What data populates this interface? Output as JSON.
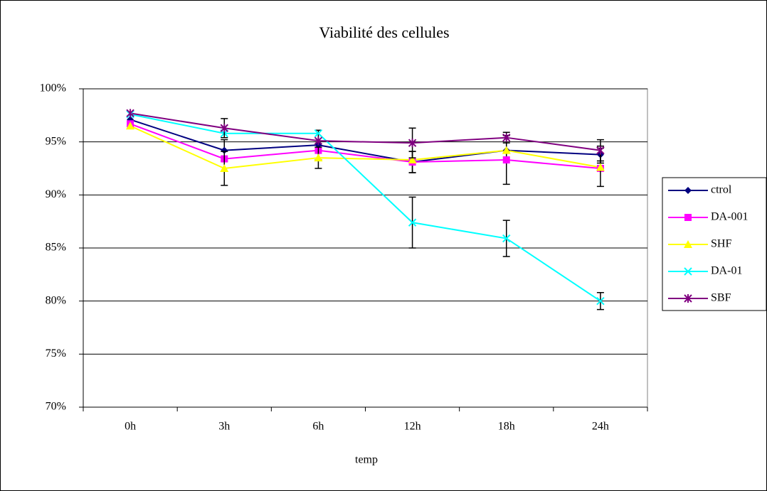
{
  "chart_data": {
    "type": "line",
    "title": "Viabilité des cellules",
    "xlabel": "temp",
    "categories": [
      "0h",
      "3h",
      "6h",
      "12h",
      "18h",
      "24h"
    ],
    "series": [
      {
        "name": "ctrol",
        "color": "#000080",
        "marker": "diamond",
        "values": [
          97.1,
          94.2,
          94.7,
          93.1,
          94.2,
          93.8
        ],
        "errors": [
          null,
          1.0,
          1.4,
          1.0,
          null,
          0.8
        ]
      },
      {
        "name": "DA-001",
        "color": "#ff00ff",
        "marker": "square",
        "values": [
          96.7,
          93.4,
          94.2,
          93.1,
          93.3,
          92.5
        ],
        "errors": [
          null,
          null,
          null,
          1.0,
          2.3,
          null
        ]
      },
      {
        "name": "SHF",
        "color": "#ffff00",
        "marker": "triangle",
        "values": [
          96.5,
          92.5,
          93.5,
          93.3,
          94.2,
          92.6
        ],
        "errors": [
          null,
          1.6,
          1.0,
          null,
          null,
          1.8
        ]
      },
      {
        "name": "DA-01",
        "color": "#00ffff",
        "marker": "x",
        "values": [
          97.6,
          95.8,
          95.8,
          87.4,
          85.9,
          80.0
        ],
        "errors": [
          null,
          null,
          null,
          2.4,
          1.7,
          0.8
        ]
      },
      {
        "name": "SBF",
        "color": "#800080",
        "marker": "star",
        "values": [
          97.7,
          96.3,
          95.1,
          94.9,
          95.4,
          94.2
        ],
        "errors": [
          null,
          0.9,
          null,
          1.4,
          0.5,
          1.0
        ]
      }
    ],
    "ylim": [
      70,
      100
    ],
    "yticks": [
      {
        "value": 70,
        "label": "70%"
      },
      {
        "value": 75,
        "label": "75%"
      },
      {
        "value": 80,
        "label": "80%"
      },
      {
        "value": 85,
        "label": "85%"
      },
      {
        "value": 90,
        "label": "90%"
      },
      {
        "value": 95,
        "label": "95%"
      },
      {
        "value": 100,
        "label": "100%"
      }
    ],
    "grid": true,
    "legend": "right"
  }
}
